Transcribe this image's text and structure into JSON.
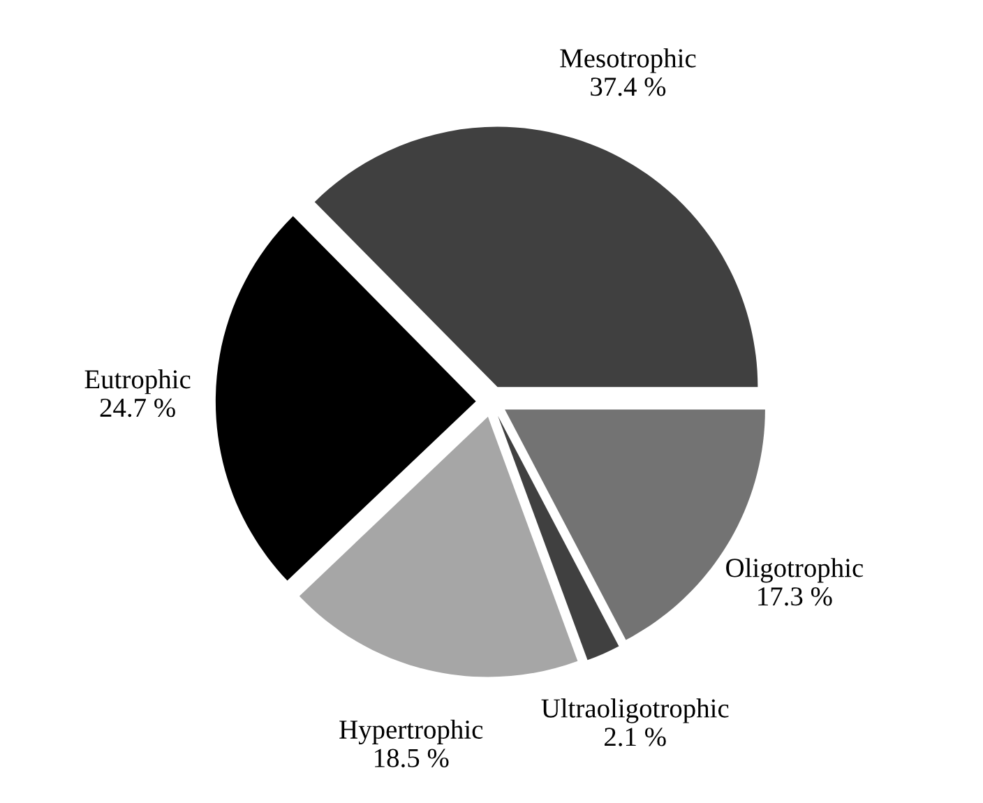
{
  "chart_data": {
    "type": "pie",
    "categories": [
      "Mesotrophic",
      "Eutrophic",
      "Hypertrophic",
      "Ultraoligotrophic",
      "Oligotrophic"
    ],
    "values": [
      37.4,
      24.7,
      18.5,
      2.1,
      17.3
    ],
    "value_labels": [
      "37.4 %",
      "24.7 %",
      "18.5 %",
      "2.1 %",
      "17.3 %"
    ],
    "colors": [
      "#404040",
      "#000000",
      "#a6a6a6",
      "#404040",
      "#737373"
    ],
    "legend": false
  }
}
